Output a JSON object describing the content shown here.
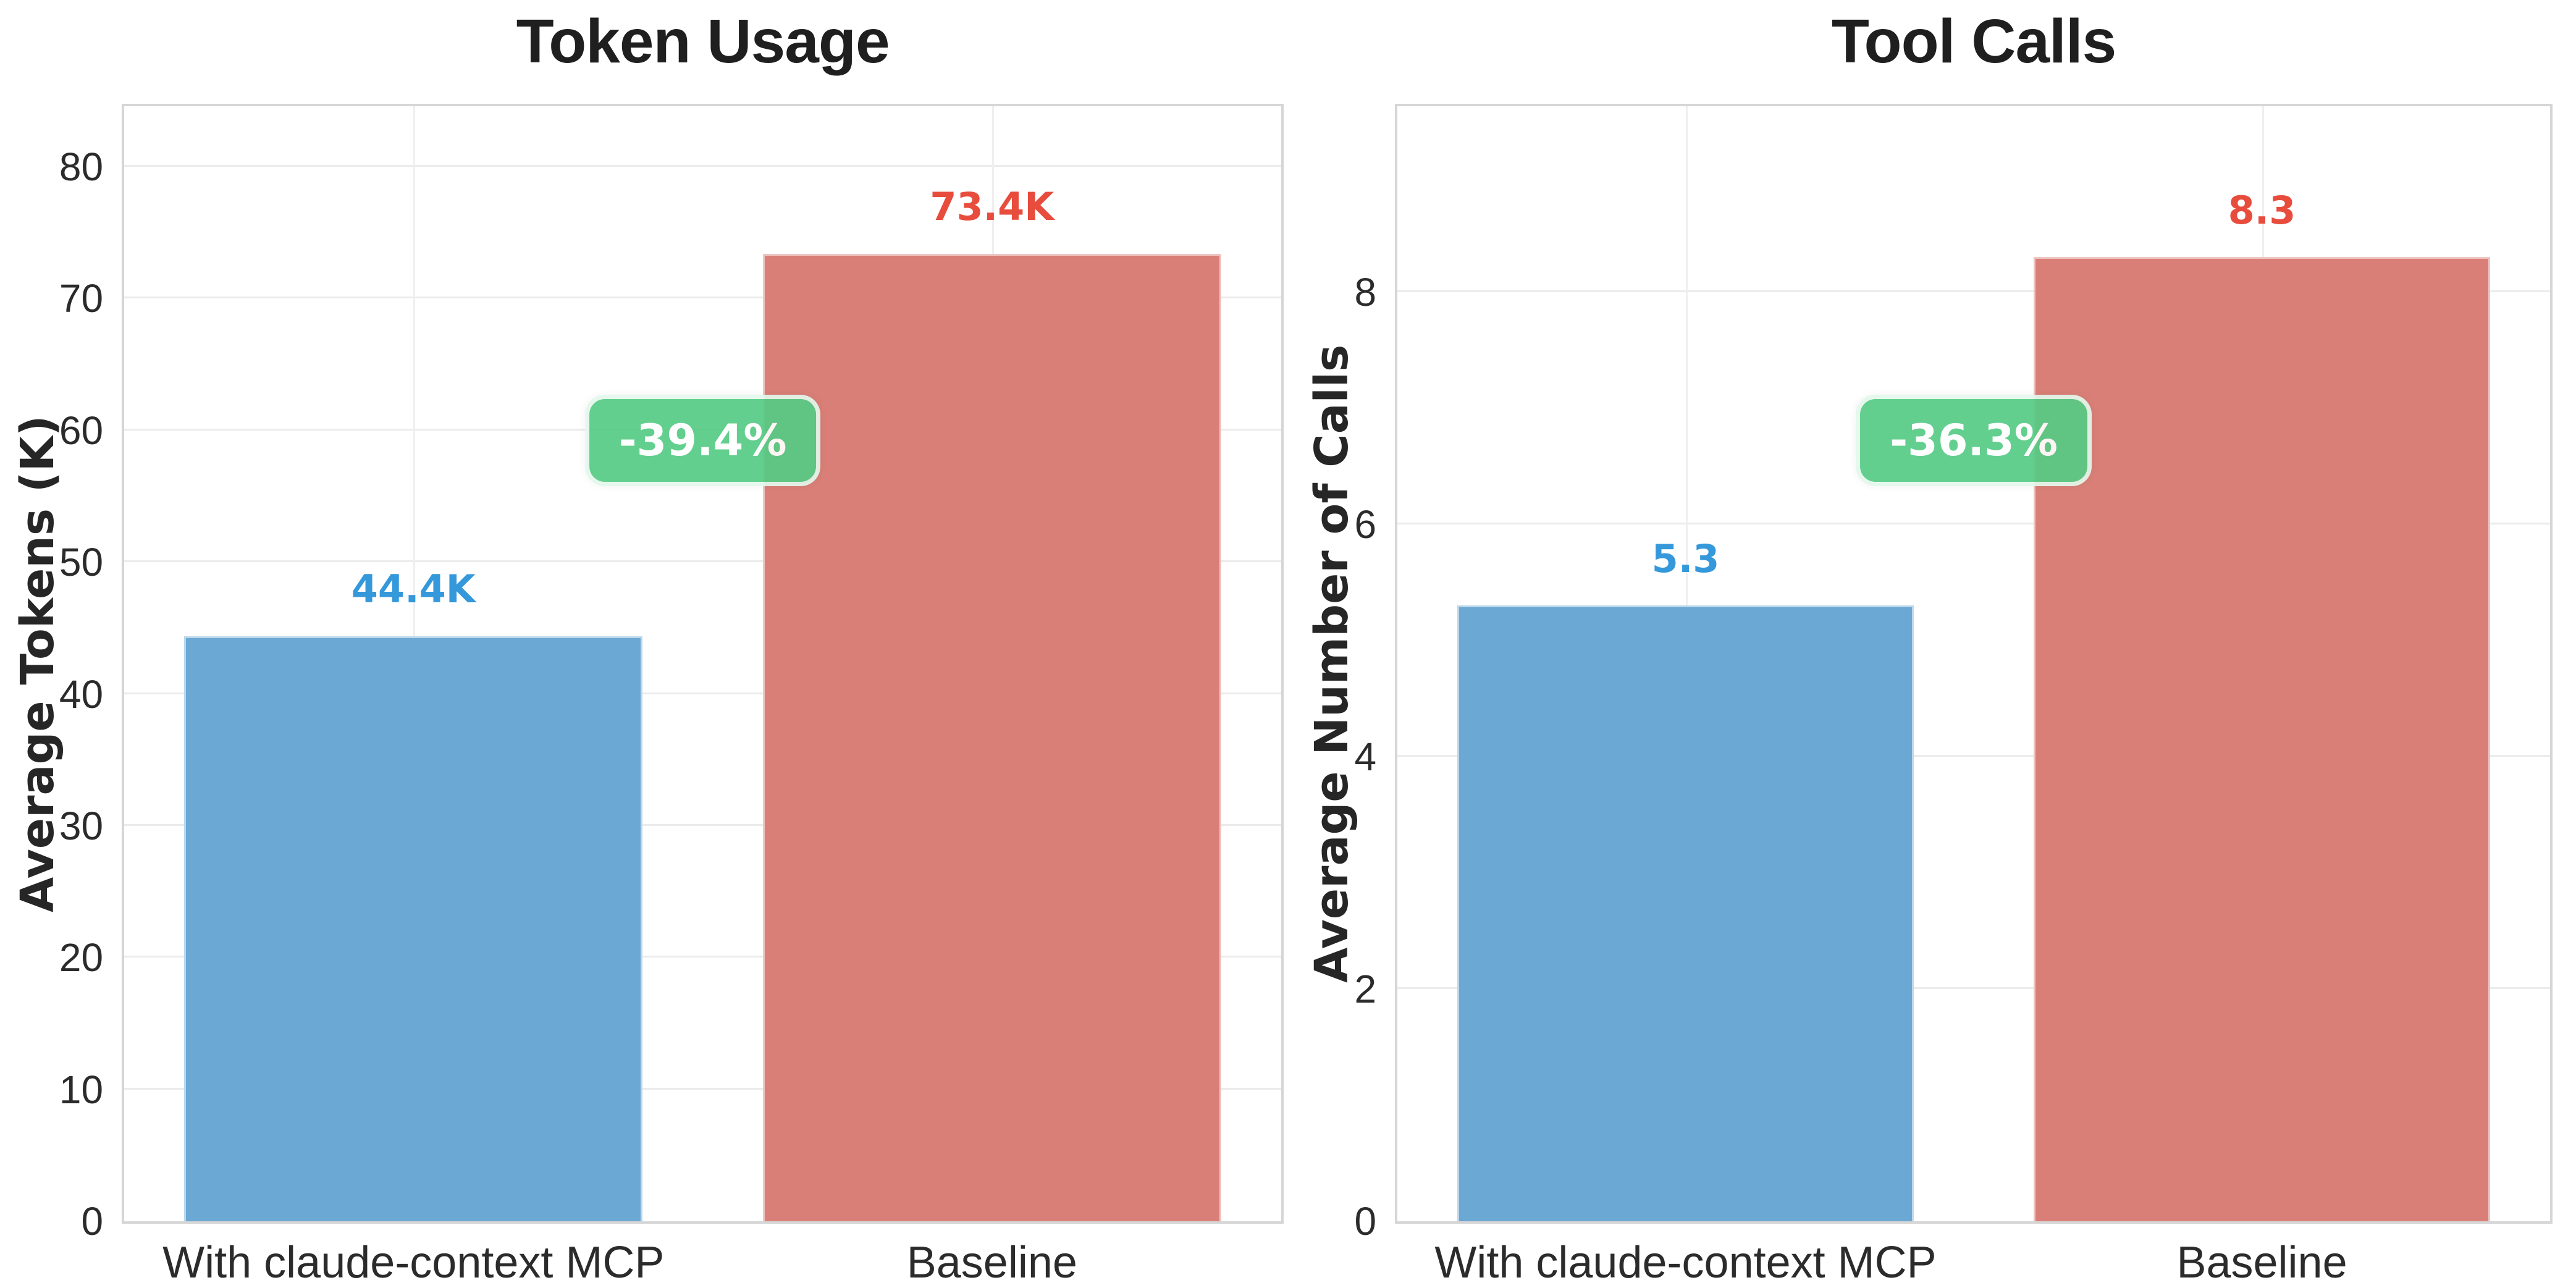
{
  "figure": {
    "background": "#FFFFFF"
  },
  "colors": {
    "grid": "#EBEBEB",
    "spine": "#D6D6D6",
    "tick_text": "#2B2B2B",
    "title_text": "#1F1F1F",
    "badge_bg": "#56CB85",
    "badge_border": "#EBFAF1",
    "badge_text": "#FFFFFF"
  },
  "chart_data": [
    {
      "type": "bar",
      "title": "Token Usage",
      "ylabel": "Average Tokens (K)",
      "categories": [
        "With claude-context MCP",
        "Baseline"
      ],
      "values": [
        44.4,
        73.4
      ],
      "value_labels": [
        "44.4K",
        "73.4K"
      ],
      "value_label_colors": [
        "#3498DB",
        "#E74C3C"
      ],
      "bar_colors": [
        "#6BA8D3",
        "#D97F77"
      ],
      "yticks": [
        0,
        10,
        20,
        30,
        40,
        50,
        60,
        70,
        80
      ],
      "ylim": [
        0,
        84.6
      ],
      "grid": true,
      "legend": null,
      "annotation": {
        "text": "-39.4%",
        "bg": "#56CB85",
        "text_color": "#FFFFFF"
      }
    },
    {
      "type": "bar",
      "title": "Tool Calls",
      "ylabel": "Average Number of Calls",
      "categories": [
        "With claude-context MCP",
        "Baseline"
      ],
      "values": [
        5.3,
        8.3
      ],
      "value_labels": [
        "5.3",
        "8.3"
      ],
      "value_label_colors": [
        "#3498DB",
        "#E74C3C"
      ],
      "bar_colors": [
        "#6BA8D3",
        "#D97F77"
      ],
      "yticks": [
        0,
        2,
        4,
        6,
        8
      ],
      "ylim": [
        0,
        9.6
      ],
      "grid": true,
      "legend": null,
      "annotation": {
        "text": "-36.3%",
        "bg": "#56CB85",
        "text_color": "#FFFFFF"
      }
    }
  ]
}
